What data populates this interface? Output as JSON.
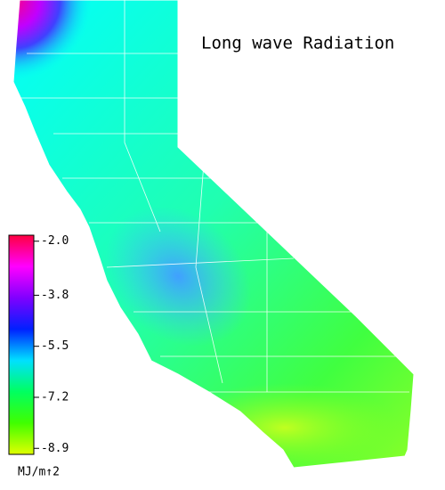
{
  "title": "Long wave Radiation",
  "colorbar": {
    "lim": [
      -1.8,
      -9.1
    ],
    "ticks": [
      {
        "value": -2.0,
        "label": "-2.0"
      },
      -3.8,
      -5.5,
      -7.2,
      -8.9
    ],
    "colors": [
      "#ff0040",
      "#ff00ff",
      "#8000ff",
      "#0020ff",
      "#00e0ff",
      "#00ff60",
      "#40ff00",
      "#e0ff00"
    ],
    "unit": "MJ/m↑2"
  }
}
